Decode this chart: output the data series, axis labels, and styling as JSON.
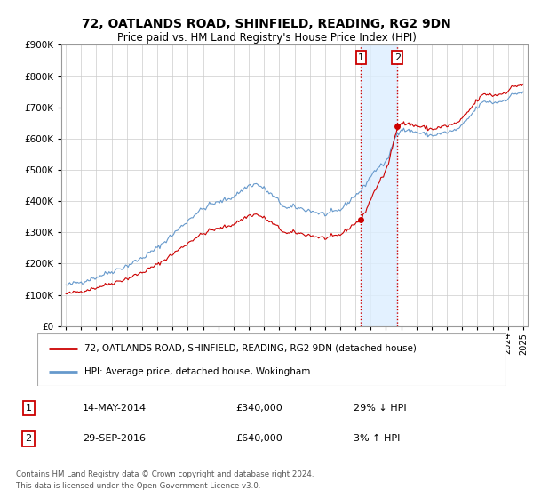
{
  "title": "72, OATLANDS ROAD, SHINFIELD, READING, RG2 9DN",
  "subtitle": "Price paid vs. HM Land Registry's House Price Index (HPI)",
  "legend_line1": "72, OATLANDS ROAD, SHINFIELD, READING, RG2 9DN (detached house)",
  "legend_line2": "HPI: Average price, detached house, Wokingham",
  "annotation1": {
    "label": "1",
    "date": "14-MAY-2014",
    "price": "£340,000",
    "pct": "29% ↓ HPI",
    "x_year": 2014.37
  },
  "annotation2": {
    "label": "2",
    "date": "29-SEP-2016",
    "price": "£640,000",
    "pct": "3% ↑ HPI",
    "x_year": 2016.75
  },
  "footnote": "Contains HM Land Registry data © Crown copyright and database right 2024.\nThis data is licensed under the Open Government Licence v3.0.",
  "hpi_color": "#6699cc",
  "price_color": "#cc0000",
  "background_color": "#ffffff",
  "grid_color": "#cccccc",
  "ylim": [
    0,
    900000
  ],
  "yticks": [
    0,
    100000,
    200000,
    300000,
    400000,
    500000,
    600000,
    700000,
    800000,
    900000
  ],
  "xlim_start": 1994.7,
  "xlim_end": 2025.3,
  "shade_x1": 2014.37,
  "shade_x2": 2016.75,
  "purchase1_price": 340000,
  "purchase2_price": 640000
}
